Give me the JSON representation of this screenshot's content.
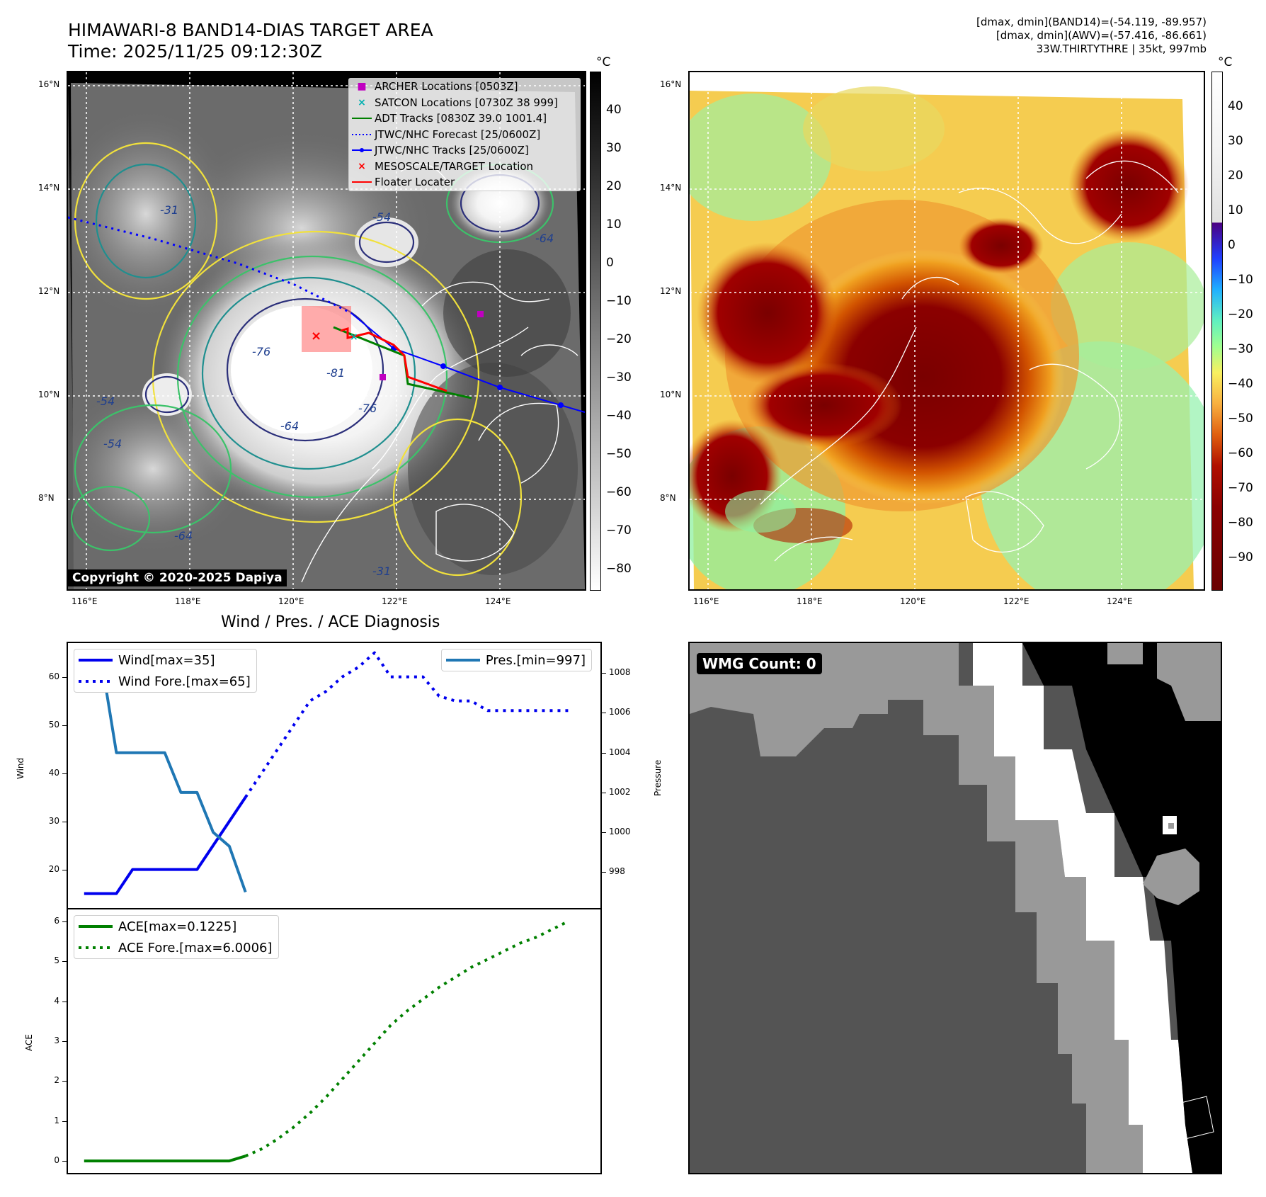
{
  "header": {
    "title_line1": "HIMAWARI-8 BAND14-DIAS TARGET AREA",
    "title_line2": "Time: 2025/11/25 09:12:30Z",
    "info_line1": "[dmax, dmin](BAND14)=(-54.119, -89.957)",
    "info_line2": "[dmax, dmin](AWV)=(-57.416, -86.661)",
    "info_line3": "33W.THIRTYTHRE | 35kt, 997mb"
  },
  "map_axes": {
    "lat_labels": [
      "16°N",
      "14°N",
      "12°N",
      "10°N",
      "8°N"
    ],
    "lon_labels": [
      "116°E",
      "118°E",
      "120°E",
      "122°E",
      "124°E"
    ]
  },
  "ir_panel": {
    "colorbar_unit": "°C",
    "colorbar_ticks": [
      "40",
      "30",
      "20",
      "10",
      "0",
      "−10",
      "−20",
      "−30",
      "−40",
      "−50",
      "−60",
      "−70",
      "−80"
    ],
    "copyright": "Copyright © 2020-2025 Dapiya",
    "contour_labels": [
      "-31",
      "-54",
      "-64",
      "-76",
      "-81",
      "-76",
      "-64",
      "-54",
      "-31",
      "-64",
      "-54"
    ],
    "legend": [
      {
        "label": "ARCHER Locations [0503Z]",
        "marker": "■",
        "color": "#c000c0"
      },
      {
        "label": "SATCON Locations [0730Z 38 999]",
        "marker": "×",
        "color": "#00b0b0"
      },
      {
        "label": "ADT Tracks [0830Z 39.0 1001.4]",
        "marker": "line",
        "color": "#008000"
      },
      {
        "label": "JTWC/NHC Forecast [25/0600Z]",
        "marker": "dotted",
        "color": "#0000ff"
      },
      {
        "label": "JTWC/NHC Tracks [25/0600Z]",
        "marker": "line-dot",
        "color": "#0000ff"
      },
      {
        "label": "MESOSCALE/TARGET Location",
        "marker": "×",
        "color": "#ff0000"
      },
      {
        "label": "Floater Locater",
        "marker": "line",
        "color": "#ff0000"
      }
    ]
  },
  "awv_panel": {
    "colorbar_unit": "°C",
    "colorbar_ticks": [
      "40",
      "30",
      "20",
      "10",
      "0",
      "−10",
      "−20",
      "−30",
      "−40",
      "−50",
      "−60",
      "−70",
      "−80",
      "−90"
    ]
  },
  "wmg_panel": {
    "label": "WMG Count: 0"
  },
  "diag_title": "Wind / Pres. / ACE Diagnosis",
  "chart_data": [
    {
      "type": "line",
      "title": "Wind / Pres. / ACE Diagnosis",
      "ylabel": "Wind",
      "y2label": "Pressure",
      "ylim": [
        12,
        67
      ],
      "y2lim": [
        996.2,
        1009.5
      ],
      "xlim": [
        -1,
        32
      ],
      "yticks": [
        20,
        30,
        40,
        50,
        60
      ],
      "y2ticks": [
        998,
        1000,
        1002,
        1004,
        1006,
        1008
      ],
      "series": [
        {
          "name": "Wind[max=35]",
          "style": "solid",
          "color": "#0000ee",
          "x": [
            0,
            1,
            2,
            3,
            4,
            5,
            6,
            7,
            8,
            9,
            10
          ],
          "values": [
            15,
            15,
            15,
            20,
            20,
            20,
            20,
            20,
            25,
            30,
            35
          ]
        },
        {
          "name": "Wind Fore.[max=65]",
          "style": "dotted",
          "color": "#0000ee",
          "x": [
            10,
            11,
            12,
            13,
            14,
            15,
            16,
            17,
            18,
            19,
            20,
            21,
            22,
            23,
            24,
            25,
            26,
            27,
            28,
            29,
            30
          ],
          "values": [
            35,
            40,
            45,
            50,
            55,
            57,
            60,
            62,
            65,
            60,
            60,
            60,
            56,
            55,
            55,
            53,
            53,
            53,
            53,
            53,
            53
          ]
        },
        {
          "name": "Pres.[min=997]",
          "style": "solid",
          "color": "#1f77b4",
          "axis": "right",
          "x": [
            0,
            1,
            2,
            3,
            4,
            5,
            6,
            7,
            8,
            9,
            10
          ],
          "values": [
            1009,
            1009,
            1004,
            1004,
            1004,
            1004,
            1002,
            1002,
            1000,
            999.3,
            997
          ]
        }
      ],
      "legend_left": [
        "Wind[max=35]",
        "Wind Fore.[max=65]"
      ],
      "legend_right": [
        "Pres.[min=997]"
      ]
    },
    {
      "type": "line",
      "ylabel": "ACE",
      "ylim": [
        -0.3,
        6.3
      ],
      "xlim": [
        -1,
        32
      ],
      "yticks": [
        0,
        1,
        2,
        3,
        4,
        5,
        6
      ],
      "series": [
        {
          "name": "ACE[max=0.1225]",
          "style": "solid",
          "color": "#008000",
          "x": [
            0,
            1,
            2,
            3,
            4,
            5,
            6,
            7,
            8,
            9,
            10
          ],
          "values": [
            0,
            0,
            0,
            0,
            0,
            0,
            0,
            0,
            0,
            0,
            0.1225
          ]
        },
        {
          "name": "ACE Fore.[max=6.0006]",
          "style": "dotted",
          "color": "#008000",
          "x": [
            10,
            11,
            12,
            13,
            14,
            15,
            16,
            17,
            18,
            19,
            20,
            21,
            22,
            23,
            24,
            25,
            26,
            27,
            28,
            29,
            30
          ],
          "values": [
            0.1225,
            0.3,
            0.55,
            0.85,
            1.2,
            1.6,
            2.05,
            2.5,
            2.95,
            3.4,
            3.75,
            4.05,
            4.35,
            4.6,
            4.85,
            5.05,
            5.25,
            5.45,
            5.6,
            5.8,
            6.0006
          ]
        }
      ],
      "legend": [
        "ACE[max=0.1225]",
        "ACE Fore.[max=6.0006]"
      ]
    }
  ]
}
